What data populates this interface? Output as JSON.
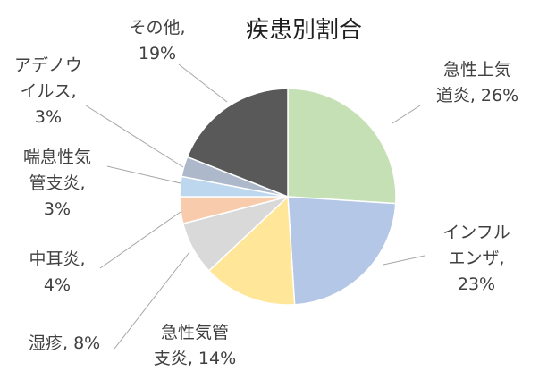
{
  "chart_data": {
    "type": "pie",
    "title": "疾患別割合",
    "start_angle_deg": 0,
    "direction": "clockwise",
    "slices": [
      {
        "name": "急性上気道炎",
        "value": 26,
        "color": "#c5e0b4",
        "label_lines": [
          "急性上気",
          "道炎, 26%"
        ]
      },
      {
        "name": "インフルエンザ",
        "value": 23,
        "color": "#b4c7e7",
        "label_lines": [
          "インフル",
          "エンザ,",
          "23%"
        ]
      },
      {
        "name": "急性気管支炎",
        "value": 14,
        "color": "#ffe699",
        "label_lines": [
          "急性気管",
          "支炎, 14%"
        ]
      },
      {
        "name": "湿疹",
        "value": 8,
        "color": "#d9d9d9",
        "label_lines": [
          "湿疹, 8%"
        ]
      },
      {
        "name": "中耳炎",
        "value": 4,
        "color": "#f8cbad",
        "label_lines": [
          "中耳炎,",
          "4%"
        ]
      },
      {
        "name": "喘息性気管支炎",
        "value": 3,
        "color": "#bdd7ee",
        "label_lines": [
          "喘息性気",
          "管支炎,",
          "3%"
        ]
      },
      {
        "name": "アデノウイルス",
        "value": 3,
        "color": "#adb9ca",
        "label_lines": [
          "アデノウ",
          "イルス,",
          "3%"
        ]
      },
      {
        "name": "その他",
        "value": 19,
        "color": "#595959",
        "label_lines": [
          "その他,",
          "19%"
        ]
      }
    ]
  }
}
